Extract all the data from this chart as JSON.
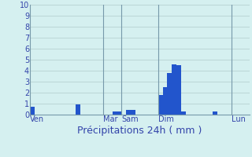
{
  "xlabel": "Précipitations 24h ( mm )",
  "background_color": "#d5f0f0",
  "bar_color": "#2255cc",
  "grid_color": "#b0cccc",
  "vline_color": "#7799aa",
  "ylim": [
    0,
    10
  ],
  "yticks": [
    0,
    1,
    2,
    3,
    4,
    5,
    6,
    7,
    8,
    9,
    10
  ],
  "n_bars": 48,
  "bar_values": [
    0.7,
    0.0,
    0.0,
    0.0,
    0.0,
    0.0,
    0.0,
    0.0,
    0.0,
    0.0,
    0.9,
    0.0,
    0.0,
    0.0,
    0.0,
    0.0,
    0.0,
    0.0,
    0.3,
    0.3,
    0.0,
    0.4,
    0.4,
    0.0,
    0.0,
    0.0,
    0.0,
    0.0,
    1.8,
    2.5,
    3.8,
    4.6,
    4.5,
    0.3,
    0.0,
    0.0,
    0.0,
    0.0,
    0.0,
    0.0,
    0.3,
    0.0,
    0.0,
    0.0,
    0.0,
    0.0,
    0.0,
    0.0
  ],
  "xtick_positions": [
    0,
    16,
    20,
    28,
    44
  ],
  "xtick_labels": [
    "Ven",
    "Mar",
    "Sam",
    "Dim",
    "Lun"
  ],
  "vline_positions": [
    16,
    20,
    28,
    44
  ],
  "xlabel_color": "#3344aa",
  "tick_color": "#3344aa",
  "xlabel_fontsize": 9,
  "ytick_fontsize": 7,
  "xtick_fontsize": 7
}
